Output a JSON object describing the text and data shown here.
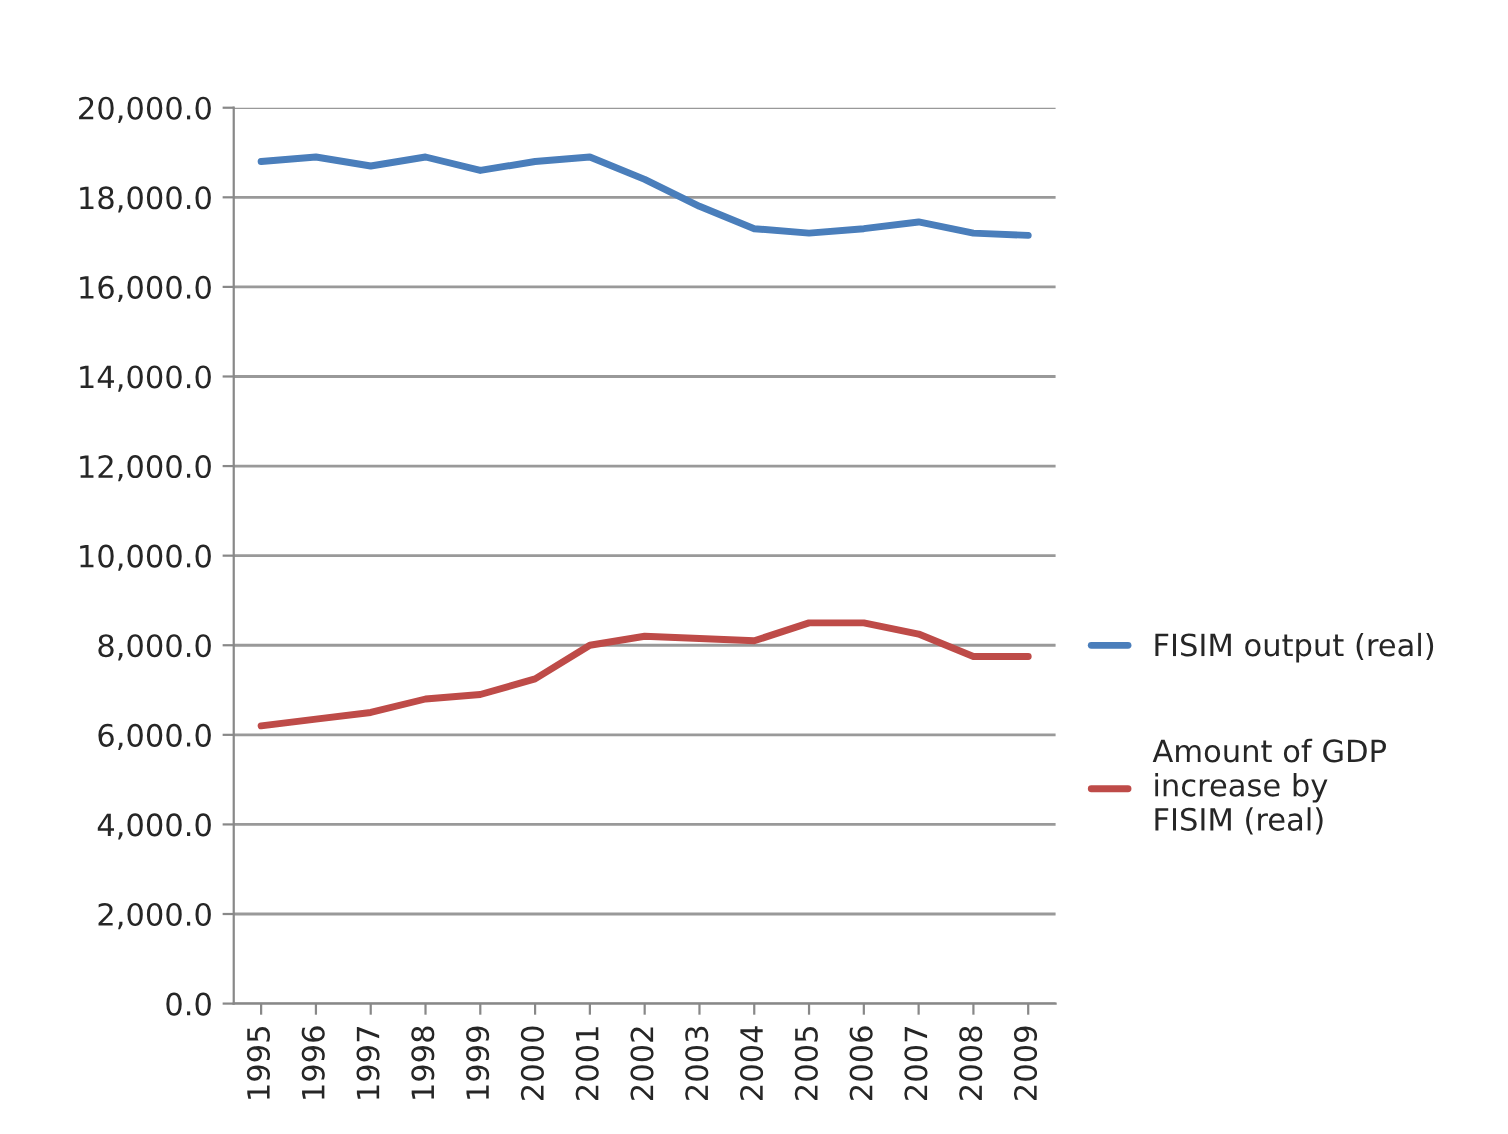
{
  "chart_data": {
    "type": "line",
    "categories": [
      "1995",
      "1996",
      "1997",
      "1998",
      "1999",
      "2000",
      "2001",
      "2002",
      "2003",
      "2004",
      "2005",
      "2006",
      "2007",
      "2008",
      "2009"
    ],
    "series": [
      {
        "name": "FISIM output (real)",
        "color": "#4a7ebb",
        "values": [
          18800,
          18900,
          18700,
          18900,
          18600,
          18800,
          18900,
          18400,
          17800,
          17300,
          17200,
          17300,
          17450,
          17200,
          17150
        ]
      },
      {
        "name": "Amount of GDP increase by FISIM (real)",
        "color": "#be4b48",
        "values": [
          6200,
          6350,
          6500,
          6800,
          6900,
          7250,
          8000,
          8200,
          8150,
          8100,
          8500,
          8500,
          8250,
          7750,
          7750
        ]
      }
    ],
    "ylim": [
      0,
      20000
    ],
    "yticks": [
      {
        "value": 0,
        "label": "0.0"
      },
      {
        "value": 2000,
        "label": "2,000.0"
      },
      {
        "value": 4000,
        "label": "4,000.0"
      },
      {
        "value": 6000,
        "label": "6,000.0"
      },
      {
        "value": 8000,
        "label": "8,000.0"
      },
      {
        "value": 10000,
        "label": "10,000.0"
      },
      {
        "value": 12000,
        "label": "12,000.0"
      },
      {
        "value": 14000,
        "label": "14,000.0"
      },
      {
        "value": 16000,
        "label": "16,000.0"
      },
      {
        "value": 18000,
        "label": "18,000.0"
      },
      {
        "value": 20000,
        "label": "20,000.0"
      }
    ],
    "grid": "y",
    "legend": "right",
    "marker": "none",
    "line_style": "solid"
  }
}
